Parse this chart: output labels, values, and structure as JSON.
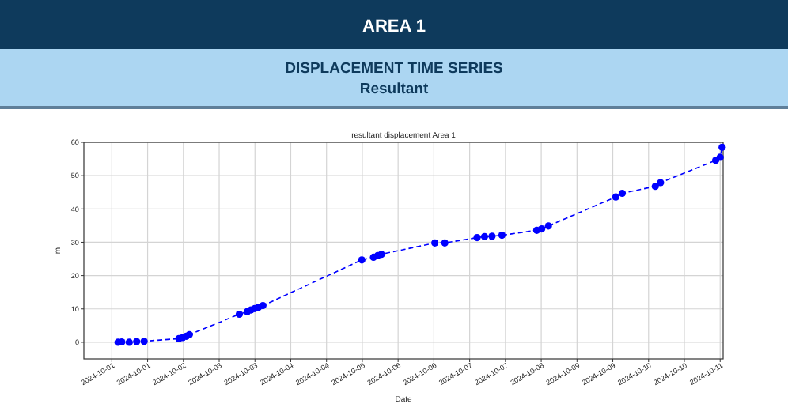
{
  "chart_data": {
    "type": "line",
    "title": "resultant displacement Area 1",
    "annotations": [
      "AREA 1",
      "DISPLACEMENT TIME SERIES",
      "Resultant"
    ],
    "xlabel": "Date",
    "ylabel": "m",
    "x": [
      "2024-10-01T08:30",
      "2024-10-01T10:00",
      "2024-10-01T13:00",
      "2024-10-01T16:00",
      "2024-10-01T19:00",
      "2024-10-02T09:00",
      "2024-10-02T10:30",
      "2024-10-02T12:00",
      "2024-10-02T13:12",
      "2024-10-03T09:18",
      "2024-10-03T12:30",
      "2024-10-03T14:00",
      "2024-10-03T15:30",
      "2024-10-03T17:00",
      "2024-10-03T18:48",
      "2024-10-05T10:36",
      "2024-10-05T15:18",
      "2024-10-05T17:00",
      "2024-10-05T18:30",
      "2024-10-06T16:00",
      "2024-10-06T20:00",
      "2024-10-07T09:00",
      "2024-10-07T12:00",
      "2024-10-07T15:00",
      "2024-10-07T19:00",
      "2024-10-08T09:00",
      "2024-10-08T11:00",
      "2024-10-08T13:42",
      "2024-10-09T16:48",
      "2024-10-09T19:24",
      "2024-10-10T08:42",
      "2024-10-10T10:48",
      "2024-10-11T09:00",
      "2024-10-11T10:48",
      "2024-10-11T11:36"
    ],
    "series": [
      {
        "color": "#0000ff",
        "values": [
          0.0,
          0.1,
          0.0,
          0.2,
          0.3,
          1.1,
          1.4,
          1.8,
          2.3,
          8.4,
          9.2,
          9.7,
          10.1,
          10.5,
          11.0,
          24.7,
          25.5,
          26.0,
          26.4,
          29.8,
          29.8,
          31.4,
          31.7,
          31.8,
          32.1,
          33.6,
          34.0,
          34.9,
          43.6,
          44.7,
          46.8,
          47.9,
          54.6,
          55.5,
          58.5
        ]
      }
    ],
    "xlim": [
      "2024-09-30T18:45",
      "2024-10-11T12:00"
    ],
    "ylim": [
      -5,
      60
    ],
    "yticks": [
      0,
      10,
      20,
      30,
      40,
      50,
      60
    ],
    "xticks": [
      {
        "value": "2024-10-01T06:00",
        "label": "2024-10-01"
      },
      {
        "value": "2024-10-01T20:24",
        "label": "2024-10-01"
      },
      {
        "value": "2024-10-02T10:48",
        "label": "2024-10-02"
      },
      {
        "value": "2024-10-03T01:12",
        "label": "2024-10-03"
      },
      {
        "value": "2024-10-03T15:36",
        "label": "2024-10-03"
      },
      {
        "value": "2024-10-04T06:00",
        "label": "2024-10-04"
      },
      {
        "value": "2024-10-04T20:24",
        "label": "2024-10-04"
      },
      {
        "value": "2024-10-05T10:48",
        "label": "2024-10-05"
      },
      {
        "value": "2024-10-06T01:12",
        "label": "2024-10-06"
      },
      {
        "value": "2024-10-06T15:36",
        "label": "2024-10-06"
      },
      {
        "value": "2024-10-07T06:00",
        "label": "2024-10-07"
      },
      {
        "value": "2024-10-07T20:24",
        "label": "2024-10-07"
      },
      {
        "value": "2024-10-08T10:48",
        "label": "2024-10-08"
      },
      {
        "value": "2024-10-09T01:12",
        "label": "2024-10-09"
      },
      {
        "value": "2024-10-09T15:36",
        "label": "2024-10-09"
      },
      {
        "value": "2024-10-10T06:00",
        "label": "2024-10-10"
      },
      {
        "value": "2024-10-10T20:24",
        "label": "2024-10-10"
      },
      {
        "value": "2024-10-11T10:48",
        "label": "2024-10-11"
      }
    ],
    "grid": true,
    "marker": "circle",
    "line_style": "dashed"
  }
}
